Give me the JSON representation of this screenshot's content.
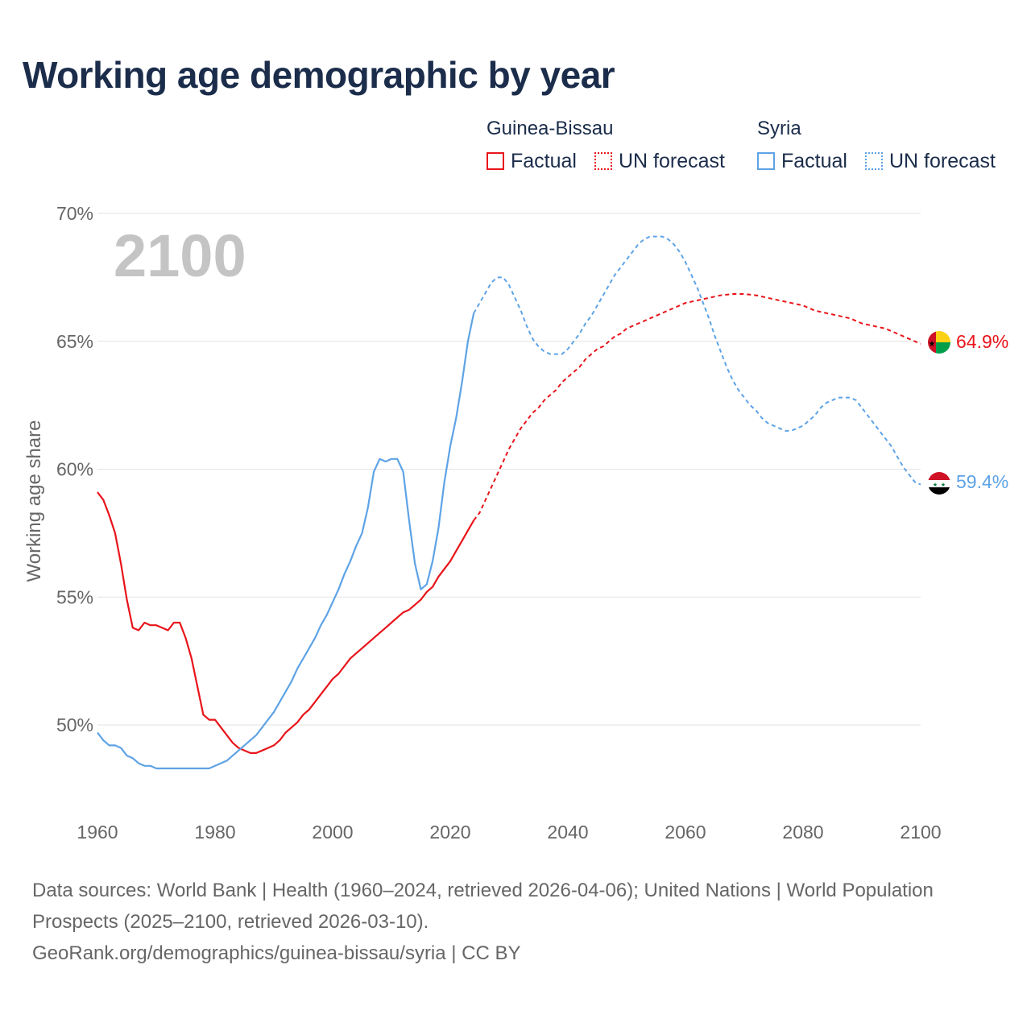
{
  "title": "Working age demographic by year",
  "colors": {
    "guinea": "#e8141a",
    "syria": "#5ea3e6",
    "title": "#1b2d4b",
    "grid": "#e3e3e3",
    "axis_text": "#666666",
    "year_text": "#c4c4c4"
  },
  "legend": {
    "groups": [
      {
        "country": "Guinea-Bissau",
        "factual_label": "Factual",
        "forecast_label": "UN forecast"
      },
      {
        "country": "Syria",
        "factual_label": "Factual",
        "forecast_label": "UN forecast"
      }
    ]
  },
  "chart_data": {
    "type": "line",
    "title": "Working age demographic by year",
    "ylabel": "Working age share",
    "xlabel": "",
    "current_year_label": "2100",
    "xlim": [
      1960,
      2100
    ],
    "ylim": [
      46.5,
      70
    ],
    "x_ticks": [
      {
        "value": 1960,
        "label": "1960"
      },
      {
        "value": 1980,
        "label": "1980"
      },
      {
        "value": 2000,
        "label": "2000"
      },
      {
        "value": 2020,
        "label": "2020"
      },
      {
        "value": 2040,
        "label": "2040"
      },
      {
        "value": 2060,
        "label": "2060"
      },
      {
        "value": 2080,
        "label": "2080"
      },
      {
        "value": 2100,
        "label": "2100"
      }
    ],
    "y_ticks": [
      {
        "value": 50,
        "label": "50%"
      },
      {
        "value": 55,
        "label": "55%"
      },
      {
        "value": 60,
        "label": "60%"
      },
      {
        "value": 65,
        "label": "65%"
      },
      {
        "value": 70,
        "label": "70%"
      }
    ],
    "series": [
      {
        "name": "Guinea-Bissau",
        "color": "#e8141a",
        "end_label": "64.9%",
        "flag_icon": "guinea-bissau-flag-icon",
        "factual": [
          [
            1960,
            59.1
          ],
          [
            1961,
            58.8
          ],
          [
            1962,
            58.2
          ],
          [
            1963,
            57.5
          ],
          [
            1964,
            56.3
          ],
          [
            1965,
            54.9
          ],
          [
            1966,
            53.8
          ],
          [
            1967,
            53.7
          ],
          [
            1968,
            54.0
          ],
          [
            1969,
            53.9
          ],
          [
            1970,
            53.9
          ],
          [
            1971,
            53.8
          ],
          [
            1972,
            53.7
          ],
          [
            1973,
            54.0
          ],
          [
            1974,
            54.0
          ],
          [
            1975,
            53.4
          ],
          [
            1976,
            52.6
          ],
          [
            1977,
            51.5
          ],
          [
            1978,
            50.4
          ],
          [
            1979,
            50.2
          ],
          [
            1980,
            50.2
          ],
          [
            1981,
            49.9
          ],
          [
            1982,
            49.6
          ],
          [
            1983,
            49.3
          ],
          [
            1984,
            49.1
          ],
          [
            1985,
            49.0
          ],
          [
            1986,
            48.9
          ],
          [
            1987,
            48.9
          ],
          [
            1988,
            49.0
          ],
          [
            1989,
            49.1
          ],
          [
            1990,
            49.2
          ],
          [
            1991,
            49.4
          ],
          [
            1992,
            49.7
          ],
          [
            1993,
            49.9
          ],
          [
            1994,
            50.1
          ],
          [
            1995,
            50.4
          ],
          [
            1996,
            50.6
          ],
          [
            1997,
            50.9
          ],
          [
            1998,
            51.2
          ],
          [
            1999,
            51.5
          ],
          [
            2000,
            51.8
          ],
          [
            2001,
            52.0
          ],
          [
            2002,
            52.3
          ],
          [
            2003,
            52.6
          ],
          [
            2004,
            52.8
          ],
          [
            2005,
            53.0
          ],
          [
            2006,
            53.2
          ],
          [
            2007,
            53.4
          ],
          [
            2008,
            53.6
          ],
          [
            2009,
            53.8
          ],
          [
            2010,
            54.0
          ],
          [
            2011,
            54.2
          ],
          [
            2012,
            54.4
          ],
          [
            2013,
            54.5
          ],
          [
            2014,
            54.7
          ],
          [
            2015,
            54.9
          ],
          [
            2016,
            55.2
          ],
          [
            2017,
            55.4
          ],
          [
            2018,
            55.8
          ],
          [
            2019,
            56.1
          ],
          [
            2020,
            56.4
          ],
          [
            2021,
            56.8
          ],
          [
            2022,
            57.2
          ],
          [
            2023,
            57.6
          ],
          [
            2024,
            58.0
          ]
        ],
        "forecast": [
          [
            2024,
            58.0
          ],
          [
            2025,
            58.3
          ],
          [
            2026,
            58.8
          ],
          [
            2027,
            59.3
          ],
          [
            2028,
            59.8
          ],
          [
            2029,
            60.3
          ],
          [
            2030,
            60.8
          ],
          [
            2031,
            61.2
          ],
          [
            2032,
            61.6
          ],
          [
            2033,
            61.9
          ],
          [
            2034,
            62.2
          ],
          [
            2035,
            62.4
          ],
          [
            2036,
            62.7
          ],
          [
            2037,
            62.9
          ],
          [
            2038,
            63.1
          ],
          [
            2039,
            63.4
          ],
          [
            2040,
            63.6
          ],
          [
            2041,
            63.8
          ],
          [
            2042,
            64.0
          ],
          [
            2043,
            64.3
          ],
          [
            2044,
            64.5
          ],
          [
            2045,
            64.7
          ],
          [
            2046,
            64.8
          ],
          [
            2047,
            65.0
          ],
          [
            2048,
            65.2
          ],
          [
            2049,
            65.3
          ],
          [
            2050,
            65.5
          ],
          [
            2051,
            65.6
          ],
          [
            2052,
            65.7
          ],
          [
            2053,
            65.8
          ],
          [
            2054,
            65.9
          ],
          [
            2055,
            66.0
          ],
          [
            2056,
            66.1
          ],
          [
            2057,
            66.2
          ],
          [
            2058,
            66.3
          ],
          [
            2059,
            66.4
          ],
          [
            2060,
            66.5
          ],
          [
            2062,
            66.6
          ],
          [
            2064,
            66.7
          ],
          [
            2066,
            66.8
          ],
          [
            2068,
            66.85
          ],
          [
            2070,
            66.85
          ],
          [
            2072,
            66.8
          ],
          [
            2074,
            66.7
          ],
          [
            2076,
            66.6
          ],
          [
            2078,
            66.5
          ],
          [
            2080,
            66.4
          ],
          [
            2082,
            66.2
          ],
          [
            2084,
            66.1
          ],
          [
            2086,
            66.0
          ],
          [
            2088,
            65.9
          ],
          [
            2090,
            65.7
          ],
          [
            2092,
            65.6
          ],
          [
            2094,
            65.5
          ],
          [
            2096,
            65.3
          ],
          [
            2098,
            65.1
          ],
          [
            2100,
            64.9
          ]
        ]
      },
      {
        "name": "Syria",
        "color": "#5ea3e6",
        "end_label": "59.4%",
        "flag_icon": "syria-flag-icon",
        "factual": [
          [
            1960,
            49.7
          ],
          [
            1961,
            49.4
          ],
          [
            1962,
            49.2
          ],
          [
            1963,
            49.2
          ],
          [
            1964,
            49.1
          ],
          [
            1965,
            48.8
          ],
          [
            1966,
            48.7
          ],
          [
            1967,
            48.5
          ],
          [
            1968,
            48.4
          ],
          [
            1969,
            48.4
          ],
          [
            1970,
            48.3
          ],
          [
            1971,
            48.3
          ],
          [
            1972,
            48.3
          ],
          [
            1973,
            48.3
          ],
          [
            1974,
            48.3
          ],
          [
            1975,
            48.3
          ],
          [
            1976,
            48.3
          ],
          [
            1977,
            48.3
          ],
          [
            1978,
            48.3
          ],
          [
            1979,
            48.3
          ],
          [
            1980,
            48.4
          ],
          [
            1981,
            48.5
          ],
          [
            1982,
            48.6
          ],
          [
            1983,
            48.8
          ],
          [
            1984,
            49.0
          ],
          [
            1985,
            49.2
          ],
          [
            1986,
            49.4
          ],
          [
            1987,
            49.6
          ],
          [
            1988,
            49.9
          ],
          [
            1989,
            50.2
          ],
          [
            1990,
            50.5
          ],
          [
            1991,
            50.9
          ],
          [
            1992,
            51.3
          ],
          [
            1993,
            51.7
          ],
          [
            1994,
            52.2
          ],
          [
            1995,
            52.6
          ],
          [
            1996,
            53.0
          ],
          [
            1997,
            53.4
          ],
          [
            1998,
            53.9
          ],
          [
            1999,
            54.3
          ],
          [
            2000,
            54.8
          ],
          [
            2001,
            55.3
          ],
          [
            2002,
            55.9
          ],
          [
            2003,
            56.4
          ],
          [
            2004,
            57.0
          ],
          [
            2005,
            57.5
          ],
          [
            2006,
            58.5
          ],
          [
            2007,
            59.9
          ],
          [
            2008,
            60.4
          ],
          [
            2009,
            60.3
          ],
          [
            2010,
            60.4
          ],
          [
            2011,
            60.4
          ],
          [
            2012,
            59.9
          ],
          [
            2013,
            58.0
          ],
          [
            2014,
            56.3
          ],
          [
            2015,
            55.3
          ],
          [
            2016,
            55.5
          ],
          [
            2017,
            56.4
          ],
          [
            2018,
            57.7
          ],
          [
            2019,
            59.5
          ],
          [
            2020,
            60.9
          ],
          [
            2021,
            62.0
          ],
          [
            2022,
            63.4
          ],
          [
            2023,
            65.0
          ],
          [
            2024,
            66.1
          ]
        ],
        "forecast": [
          [
            2024,
            66.1
          ],
          [
            2025,
            66.5
          ],
          [
            2026,
            66.9
          ],
          [
            2027,
            67.3
          ],
          [
            2028,
            67.5
          ],
          [
            2029,
            67.5
          ],
          [
            2030,
            67.2
          ],
          [
            2031,
            66.7
          ],
          [
            2032,
            66.2
          ],
          [
            2033,
            65.6
          ],
          [
            2034,
            65.1
          ],
          [
            2035,
            64.8
          ],
          [
            2036,
            64.6
          ],
          [
            2037,
            64.5
          ],
          [
            2038,
            64.5
          ],
          [
            2039,
            64.5
          ],
          [
            2040,
            64.7
          ],
          [
            2041,
            65.0
          ],
          [
            2042,
            65.3
          ],
          [
            2043,
            65.7
          ],
          [
            2044,
            66.0
          ],
          [
            2045,
            66.4
          ],
          [
            2046,
            66.8
          ],
          [
            2047,
            67.2
          ],
          [
            2048,
            67.6
          ],
          [
            2049,
            67.9
          ],
          [
            2050,
            68.2
          ],
          [
            2051,
            68.5
          ],
          [
            2052,
            68.8
          ],
          [
            2053,
            69.0
          ],
          [
            2054,
            69.1
          ],
          [
            2055,
            69.1
          ],
          [
            2056,
            69.1
          ],
          [
            2057,
            69.0
          ],
          [
            2058,
            68.8
          ],
          [
            2059,
            68.5
          ],
          [
            2060,
            68.1
          ],
          [
            2061,
            67.6
          ],
          [
            2062,
            67.1
          ],
          [
            2063,
            66.5
          ],
          [
            2064,
            65.9
          ],
          [
            2065,
            65.2
          ],
          [
            2066,
            64.6
          ],
          [
            2067,
            64.0
          ],
          [
            2068,
            63.5
          ],
          [
            2069,
            63.1
          ],
          [
            2070,
            62.8
          ],
          [
            2071,
            62.5
          ],
          [
            2072,
            62.3
          ],
          [
            2073,
            62.0
          ],
          [
            2074,
            61.8
          ],
          [
            2075,
            61.7
          ],
          [
            2076,
            61.6
          ],
          [
            2077,
            61.5
          ],
          [
            2078,
            61.5
          ],
          [
            2079,
            61.6
          ],
          [
            2080,
            61.7
          ],
          [
            2081,
            61.9
          ],
          [
            2082,
            62.1
          ],
          [
            2083,
            62.4
          ],
          [
            2084,
            62.6
          ],
          [
            2085,
            62.7
          ],
          [
            2086,
            62.8
          ],
          [
            2087,
            62.8
          ],
          [
            2088,
            62.8
          ],
          [
            2089,
            62.7
          ],
          [
            2090,
            62.4
          ],
          [
            2091,
            62.1
          ],
          [
            2092,
            61.8
          ],
          [
            2093,
            61.5
          ],
          [
            2094,
            61.2
          ],
          [
            2095,
            60.9
          ],
          [
            2096,
            60.5
          ],
          [
            2097,
            60.1
          ],
          [
            2098,
            59.8
          ],
          [
            2099,
            59.5
          ],
          [
            2100,
            59.4
          ]
        ]
      }
    ]
  },
  "footer": {
    "sources": "Data sources: World Bank | Health (1960–2024, retrieved 2026-04-06); United Nations | World Population Prospects (2025–2100, retrieved 2026-03-10).",
    "attribution": "GeoRank.org/demographics/guinea-bissau/syria | CC BY"
  }
}
